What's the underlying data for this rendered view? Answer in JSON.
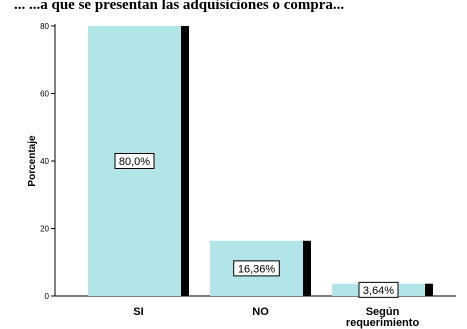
{
  "page": {
    "title_visible": "... ...a que se presentan las adquisiciones o compra..."
  },
  "chart_data": {
    "type": "bar",
    "categories": [
      "SI",
      "NO",
      "Según requerimiento"
    ],
    "category_lines": [
      [
        "SI"
      ],
      [
        "NO"
      ],
      [
        "Según",
        "requerimiento"
      ]
    ],
    "values": [
      80.0,
      16.36,
      3.64
    ],
    "data_labels": [
      "80,0%",
      "16,36%",
      "3,64%"
    ],
    "title": "",
    "xlabel": "",
    "ylabel": "Porcentaje",
    "ylim": [
      0,
      80
    ],
    "yticks": [
      0,
      20,
      40,
      60,
      80
    ],
    "grid": false,
    "bar_color": "#b2e5e8",
    "shadow_color": "#000000"
  }
}
